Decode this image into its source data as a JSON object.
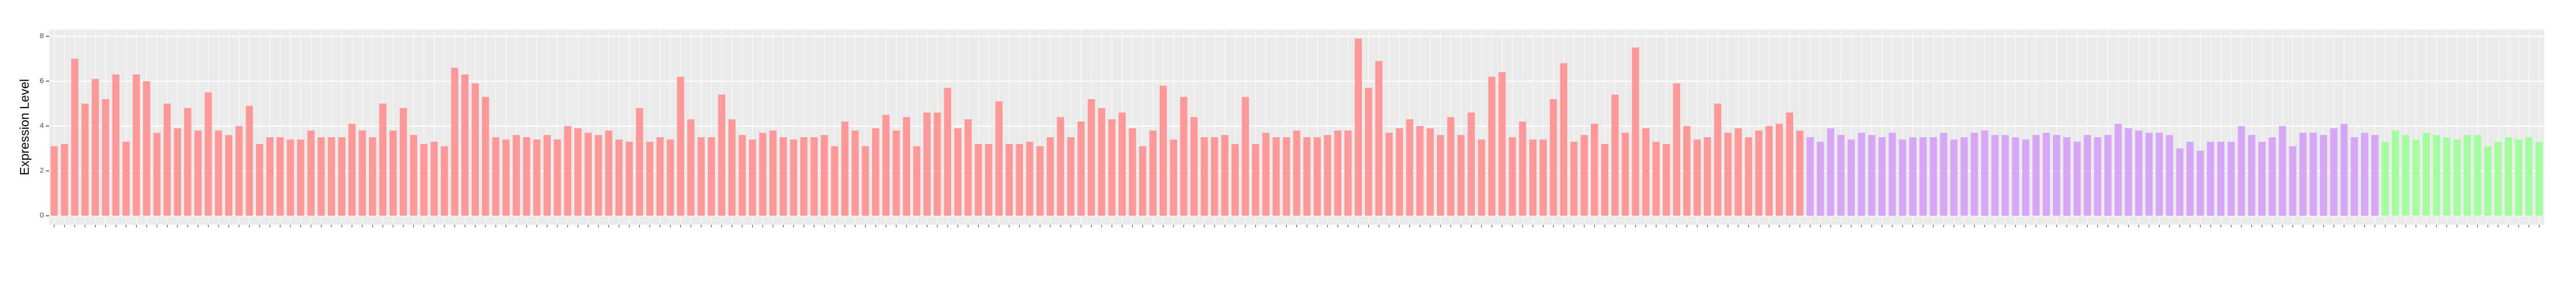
{
  "chart_data": {
    "type": "bar",
    "y_label": "Expression Level",
    "ylim": [
      -0.4,
      8.3
    ],
    "yticks": [
      0,
      2,
      4,
      6,
      8
    ],
    "grid": true,
    "values": [
      3.1,
      3.2,
      7.0,
      5.0,
      6.1,
      5.2,
      6.3,
      3.3,
      6.3,
      6.0,
      3.7,
      5.0,
      3.9,
      4.8,
      3.8,
      5.5,
      3.8,
      3.6,
      4.0,
      4.9,
      3.2,
      3.5,
      3.5,
      3.4,
      3.4,
      3.8,
      3.5,
      3.5,
      3.5,
      4.1,
      3.8,
      3.5,
      5.0,
      3.8,
      4.8,
      3.6,
      3.2,
      3.3,
      3.1,
      6.6,
      6.3,
      5.9,
      5.3,
      3.5,
      3.4,
      3.6,
      3.5,
      3.4,
      3.6,
      3.4,
      4.0,
      3.9,
      3.7,
      3.6,
      3.8,
      3.4,
      3.3,
      4.8,
      3.3,
      3.5,
      3.4,
      6.2,
      4.3,
      3.5,
      3.5,
      5.4,
      4.3,
      3.6,
      3.4,
      3.7,
      3.8,
      3.5,
      3.4,
      3.5,
      3.5,
      3.6,
      3.1,
      4.2,
      3.8,
      3.1,
      3.9,
      4.5,
      3.8,
      4.4,
      3.1,
      4.6,
      4.6,
      5.7,
      3.9,
      4.3,
      3.2,
      3.2,
      5.1,
      3.2,
      3.2,
      3.3,
      3.1,
      3.5,
      4.4,
      3.5,
      4.2,
      5.2,
      4.8,
      4.3,
      4.6,
      3.9,
      3.1,
      3.8,
      5.8,
      3.4,
      5.3,
      4.4,
      3.5,
      3.5,
      3.6,
      3.2,
      5.3,
      3.2,
      3.7,
      3.5,
      3.5,
      3.8,
      3.5,
      3.5,
      3.6,
      3.8,
      3.8,
      7.9,
      5.7,
      6.9,
      3.7,
      3.9,
      4.3,
      4.0,
      3.9,
      3.6,
      4.4,
      3.6,
      4.6,
      3.4,
      6.2,
      6.4,
      3.5,
      4.2,
      3.4,
      3.4,
      5.2,
      6.8,
      3.3,
      3.6,
      4.1,
      3.2,
      5.4,
      3.7,
      7.5,
      3.9,
      3.3,
      3.2,
      5.9,
      4.0,
      3.4,
      3.5,
      5.0,
      3.7,
      3.9,
      3.5,
      3.8,
      4.0,
      4.1,
      4.6,
      3.8,
      3.5,
      3.3,
      3.9,
      3.6,
      3.4,
      3.7,
      3.6,
      3.5,
      3.7,
      3.4,
      3.5,
      3.5,
      3.5,
      3.7,
      3.4,
      3.5,
      3.7,
      3.8,
      3.6,
      3.6,
      3.5,
      3.4,
      3.6,
      3.7,
      3.6,
      3.5,
      3.3,
      3.6,
      3.5,
      3.6,
      4.1,
      3.9,
      3.8,
      3.7,
      3.7,
      3.6,
      3.0,
      3.3,
      2.9,
      3.3,
      3.3,
      3.3,
      4.0,
      3.6,
      3.3,
      3.5,
      4.0,
      3.1,
      3.7,
      3.7,
      3.6,
      3.9,
      4.1,
      3.5,
      3.7,
      3.6,
      3.3,
      3.8,
      3.6,
      3.4,
      3.7,
      3.6,
      3.5,
      3.4,
      3.6,
      3.6,
      3.1,
      3.3,
      3.5,
      3.4,
      3.5,
      3.3
    ],
    "colors": [
      "#ff9999",
      "#ff9999",
      "#ff9999",
      "#ff9999",
      "#ff9999",
      "#ff9999",
      "#ff9999",
      "#ff9999",
      "#ff9999",
      "#ff9999",
      "#ff9999",
      "#ff9999",
      "#ff9999",
      "#ff9999",
      "#ff9999",
      "#ff9999",
      "#ff9999",
      "#ff9999",
      "#ff9999",
      "#ff9999",
      "#ff9999",
      "#ff9999",
      "#ff9999",
      "#ff9999",
      "#ff9999",
      "#ff9999",
      "#ff9999",
      "#ff9999",
      "#ff9999",
      "#ff9999",
      "#ff9999",
      "#ff9999",
      "#ff9999",
      "#ff9999",
      "#ff9999",
      "#ff9999",
      "#ff9999",
      "#ff9999",
      "#ff9999",
      "#ff9999",
      "#ff9999",
      "#ff9999",
      "#ff9999",
      "#ff9999",
      "#ff9999",
      "#ff9999",
      "#ff9999",
      "#ff9999",
      "#ff9999",
      "#ff9999",
      "#ff9999",
      "#ff9999",
      "#ff9999",
      "#ff9999",
      "#ff9999",
      "#ff9999",
      "#ff9999",
      "#ff9999",
      "#ff9999",
      "#ff9999",
      "#ff9999",
      "#ff9999",
      "#ff9999",
      "#ff9999",
      "#ff9999",
      "#ff9999",
      "#ff9999",
      "#ff9999",
      "#ff9999",
      "#ff9999",
      "#ff9999",
      "#ff9999",
      "#ff9999",
      "#ff9999",
      "#ff9999",
      "#ff9999",
      "#ff9999",
      "#ff9999",
      "#ff9999",
      "#ff9999",
      "#ff9999",
      "#ff9999",
      "#ff9999",
      "#ff9999",
      "#ff9999",
      "#ff9999",
      "#ff9999",
      "#ff9999",
      "#ff9999",
      "#ff9999",
      "#ff9999",
      "#ff9999",
      "#ff9999",
      "#ff9999",
      "#ff9999",
      "#ff9999",
      "#ff9999",
      "#ff9999",
      "#ff9999",
      "#ff9999",
      "#ff9999",
      "#ff9999",
      "#ff9999",
      "#ff9999",
      "#ff9999",
      "#ff9999",
      "#ff9999",
      "#ff9999",
      "#ff9999",
      "#ff9999",
      "#ff9999",
      "#ff9999",
      "#ff9999",
      "#ff9999",
      "#ff9999",
      "#ff9999",
      "#ff9999",
      "#ff9999",
      "#ff9999",
      "#ff9999",
      "#ff9999",
      "#ff9999",
      "#ff9999",
      "#ff9999",
      "#ff9999",
      "#ff9999",
      "#ff9999",
      "#ff9999",
      "#ff9999",
      "#ff9999",
      "#ff9999",
      "#ff9999",
      "#ff9999",
      "#ff9999",
      "#ff9999",
      "#ff9999",
      "#ff9999",
      "#ff9999",
      "#ff9999",
      "#ff9999",
      "#ff9999",
      "#ff9999",
      "#ff9999",
      "#ff9999",
      "#ff9999",
      "#ff9999",
      "#ff9999",
      "#ff9999",
      "#ff9999",
      "#ff9999",
      "#ff9999",
      "#ff9999",
      "#ff9999",
      "#ff9999",
      "#ff9999",
      "#ff9999",
      "#ff9999",
      "#ff9999",
      "#ff9999",
      "#ff9999",
      "#ff9999",
      "#ff9999",
      "#ff9999",
      "#ff9999",
      "#ff9999",
      "#ff9999",
      "#ff9999",
      "#ff9999",
      "#ff9999",
      "#ff9999",
      "#ff9999",
      "#d6a6f7",
      "#d6a6f7",
      "#d6a6f7",
      "#d6a6f7",
      "#d6a6f7",
      "#d6a6f7",
      "#d6a6f7",
      "#d6a6f7",
      "#d6a6f7",
      "#d6a6f7",
      "#d6a6f7",
      "#d6a6f7",
      "#d6a6f7",
      "#d6a6f7",
      "#d6a6f7",
      "#d6a6f7",
      "#d6a6f7",
      "#d6a6f7",
      "#d6a6f7",
      "#d6a6f7",
      "#d6a6f7",
      "#d6a6f7",
      "#d6a6f7",
      "#d6a6f7",
      "#d6a6f7",
      "#d6a6f7",
      "#d6a6f7",
      "#d6a6f7",
      "#d6a6f7",
      "#d6a6f7",
      "#d6a6f7",
      "#d6a6f7",
      "#d6a6f7",
      "#d6a6f7",
      "#d6a6f7",
      "#d6a6f7",
      "#d6a6f7",
      "#d6a6f7",
      "#d6a6f7",
      "#d6a6f7",
      "#d6a6f7",
      "#d6a6f7",
      "#d6a6f7",
      "#d6a6f7",
      "#d6a6f7",
      "#d6a6f7",
      "#d6a6f7",
      "#d6a6f7",
      "#d6a6f7",
      "#d6a6f7",
      "#d6a6f7",
      "#d6a6f7",
      "#d6a6f7",
      "#d6a6f7",
      "#d6a6f7",
      "#d6a6f7",
      "#a3ff9e",
      "#a3ff9e",
      "#a3ff9e",
      "#a3ff9e",
      "#a3ff9e",
      "#a3ff9e",
      "#a3ff9e",
      "#a3ff9e",
      "#a3ff9e",
      "#a3ff9e",
      "#a3ff9e",
      "#a3ff9e",
      "#a3ff9e",
      "#a3ff9e",
      "#a3ff9e",
      "#a3ff9e"
    ]
  }
}
